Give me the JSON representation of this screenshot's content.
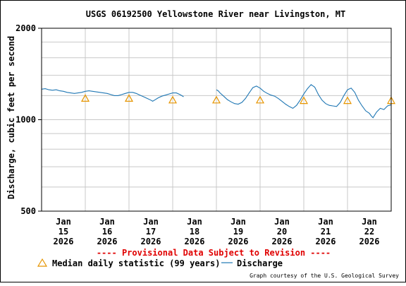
{
  "chart_data": {
    "type": "line",
    "title": "USGS 06192500 Yellowstone River near Livingston, MT",
    "ylabel": "Discharge, cubic feet per second",
    "xlabel": "",
    "y_scale": "log",
    "ylim": [
      500,
      2000
    ],
    "y_ticks": [
      {
        "value": 500,
        "label": "500"
      },
      {
        "value": 1000,
        "label": "1000"
      },
      {
        "value": 2000,
        "label": "2000"
      }
    ],
    "x_ticks": [
      {
        "line1": "Jan",
        "line2": "15",
        "line3": "2026"
      },
      {
        "line1": "Jan",
        "line2": "16",
        "line3": "2026"
      },
      {
        "line1": "Jan",
        "line2": "17",
        "line3": "2026"
      },
      {
        "line1": "Jan",
        "line2": "18",
        "line3": "2026"
      },
      {
        "line1": "Jan",
        "line2": "19",
        "line3": "2026"
      },
      {
        "line1": "Jan",
        "line2": "20",
        "line3": "2026"
      },
      {
        "line1": "Jan",
        "line2": "21",
        "line3": "2026"
      },
      {
        "line1": "Jan",
        "line2": "22",
        "line3": "2026"
      }
    ],
    "grid": true,
    "provisional_note": "---- Provisional Data Subject to Revision ----",
    "credit": "Graph courtesy of the U.S. Geological Survey",
    "colors": {
      "discharge": "#1f77b4",
      "median": "#e69500",
      "note": "#e00000",
      "grid": "#c8c8c8",
      "axis": "#000000"
    },
    "series": [
      {
        "name": "Discharge",
        "style": "line",
        "segments": [
          [
            [
              "2026-01-14T12:00",
              1260
            ],
            [
              "2026-01-14T14:00",
              1265
            ],
            [
              "2026-01-14T16:00",
              1255
            ],
            [
              "2026-01-14T18:00",
              1250
            ],
            [
              "2026-01-14T20:00",
              1255
            ],
            [
              "2026-01-14T22:00",
              1245
            ],
            [
              "2026-01-15T00:00",
              1240
            ],
            [
              "2026-01-15T02:00",
              1230
            ],
            [
              "2026-01-15T04:00",
              1225
            ],
            [
              "2026-01-15T06:00",
              1220
            ],
            [
              "2026-01-15T08:00",
              1225
            ],
            [
              "2026-01-15T10:00",
              1230
            ],
            [
              "2026-01-15T12:00",
              1240
            ],
            [
              "2026-01-15T14:00",
              1245
            ],
            [
              "2026-01-15T16:00",
              1240
            ],
            [
              "2026-01-15T18:00",
              1235
            ],
            [
              "2026-01-15T20:00",
              1230
            ],
            [
              "2026-01-15T22:00",
              1225
            ],
            [
              "2026-01-16T00:00",
              1220
            ],
            [
              "2026-01-16T02:00",
              1210
            ],
            [
              "2026-01-16T04:00",
              1200
            ],
            [
              "2026-01-16T06:00",
              1200
            ],
            [
              "2026-01-16T08:00",
              1210
            ],
            [
              "2026-01-16T10:00",
              1220
            ],
            [
              "2026-01-16T12:00",
              1230
            ],
            [
              "2026-01-16T14:00",
              1230
            ],
            [
              "2026-01-16T16:00",
              1220
            ],
            [
              "2026-01-16T18:00",
              1205
            ],
            [
              "2026-01-16T20:00",
              1190
            ],
            [
              "2026-01-16T22:00",
              1175
            ],
            [
              "2026-01-17T00:00",
              1160
            ],
            [
              "2026-01-17T01:00",
              1150
            ],
            [
              "2026-01-17T02:00",
              1160
            ],
            [
              "2026-01-17T04:00",
              1180
            ],
            [
              "2026-01-17T06:00",
              1195
            ],
            [
              "2026-01-17T08:00",
              1205
            ],
            [
              "2026-01-17T10:00",
              1215
            ],
            [
              "2026-01-17T12:00",
              1225
            ],
            [
              "2026-01-17T14:00",
              1225
            ],
            [
              "2026-01-17T16:00",
              1210
            ],
            [
              "2026-01-17T18:00",
              1190
            ]
          ],
          [
            [
              "2026-01-18T12:00",
              1255
            ],
            [
              "2026-01-18T13:00",
              1245
            ],
            [
              "2026-01-18T14:00",
              1225
            ],
            [
              "2026-01-18T16:00",
              1195
            ],
            [
              "2026-01-18T18:00",
              1165
            ],
            [
              "2026-01-18T20:00",
              1145
            ],
            [
              "2026-01-18T22:00",
              1130
            ],
            [
              "2026-01-19T00:00",
              1125
            ],
            [
              "2026-01-19T02:00",
              1140
            ],
            [
              "2026-01-19T04:00",
              1175
            ],
            [
              "2026-01-19T06:00",
              1225
            ],
            [
              "2026-01-19T08:00",
              1275
            ],
            [
              "2026-01-19T10:00",
              1290
            ],
            [
              "2026-01-19T12:00",
              1270
            ],
            [
              "2026-01-19T14:00",
              1240
            ],
            [
              "2026-01-19T16:00",
              1220
            ],
            [
              "2026-01-19T18:00",
              1205
            ],
            [
              "2026-01-19T20:00",
              1195
            ],
            [
              "2026-01-19T22:00",
              1175
            ],
            [
              "2026-01-20T00:00",
              1150
            ],
            [
              "2026-01-20T02:00",
              1125
            ],
            [
              "2026-01-20T04:00",
              1105
            ],
            [
              "2026-01-20T06:00",
              1090
            ],
            [
              "2026-01-20T08:00",
              1115
            ],
            [
              "2026-01-20T10:00",
              1160
            ],
            [
              "2026-01-20T12:00",
              1215
            ],
            [
              "2026-01-20T14:00",
              1265
            ],
            [
              "2026-01-20T16:00",
              1305
            ],
            [
              "2026-01-20T18:00",
              1280
            ],
            [
              "2026-01-20T20:00",
              1210
            ],
            [
              "2026-01-20T22:00",
              1160
            ],
            [
              "2026-01-21T00:00",
              1130
            ],
            [
              "2026-01-21T02:00",
              1115
            ],
            [
              "2026-01-21T04:00",
              1110
            ],
            [
              "2026-01-21T06:00",
              1105
            ],
            [
              "2026-01-21T08:00",
              1140
            ],
            [
              "2026-01-21T10:00",
              1200
            ],
            [
              "2026-01-21T12:00",
              1255
            ],
            [
              "2026-01-21T14:00",
              1270
            ],
            [
              "2026-01-21T16:00",
              1230
            ],
            [
              "2026-01-21T18:00",
              1160
            ],
            [
              "2026-01-21T20:00",
              1110
            ],
            [
              "2026-01-21T22:00",
              1070
            ],
            [
              "2026-01-22T00:00",
              1050
            ],
            [
              "2026-01-22T01:00",
              1030
            ],
            [
              "2026-01-22T02:00",
              1015
            ],
            [
              "2026-01-22T04:00",
              1060
            ],
            [
              "2026-01-22T06:00",
              1090
            ],
            [
              "2026-01-22T08:00",
              1080
            ],
            [
              "2026-01-22T10:00",
              1110
            ],
            [
              "2026-01-22T12:00",
              1120
            ]
          ]
        ]
      },
      {
        "name": "Median daily statistic (99 years)",
        "style": "triangle",
        "points": [
          [
            "2026-01-15T12:00",
            1175
          ],
          [
            "2026-01-16T12:00",
            1175
          ],
          [
            "2026-01-17T12:00",
            1160
          ],
          [
            "2026-01-18T12:00",
            1160
          ],
          [
            "2026-01-19T12:00",
            1160
          ],
          [
            "2026-01-20T12:00",
            1155
          ],
          [
            "2026-01-21T12:00",
            1155
          ],
          [
            "2026-01-22T12:00",
            1155
          ]
        ]
      }
    ],
    "legend": {
      "placement": "bottom"
    }
  }
}
